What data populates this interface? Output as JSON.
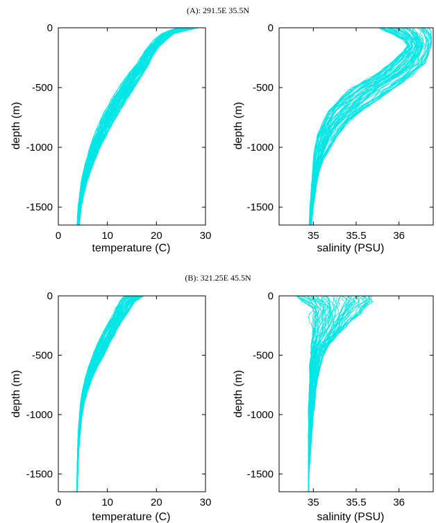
{
  "figure": {
    "line_color": "#00e5e5"
  },
  "chart_data": [
    {
      "type": "line",
      "title": "(A): 291.5E 35.5N",
      "xlabel": "temperature (C)",
      "ylabel": "depth (m)",
      "xlim": [
        0,
        30
      ],
      "ylim": [
        -1650,
        0
      ],
      "xticks": [
        "0",
        "10",
        "20",
        "30"
      ],
      "yticks": [
        "0",
        "-500",
        "-1000",
        "-1500"
      ],
      "profile_count": 60,
      "depth": [
        0,
        -50,
        -100,
        -150,
        -200,
        -300,
        -400,
        -500,
        -600,
        -700,
        -800,
        -900,
        -1000,
        -1100,
        -1200,
        -1300,
        -1400,
        -1500,
        -1650
      ],
      "envelope_min": [
        24.0,
        21.0,
        19.5,
        18.5,
        17.5,
        16.0,
        14.0,
        12.3,
        10.8,
        9.4,
        8.3,
        7.3,
        6.4,
        5.7,
        5.1,
        4.6,
        4.3,
        4.0,
        3.8
      ],
      "envelope_max": [
        28.5,
        23.5,
        22.0,
        20.8,
        19.8,
        18.5,
        17.0,
        15.6,
        14.0,
        12.5,
        11.0,
        9.8,
        8.6,
        7.5,
        6.6,
        5.8,
        5.2,
        4.7,
        4.3
      ]
    },
    {
      "type": "line",
      "title": "",
      "xlabel": "salinity (PSU)",
      "ylabel": "depth (m)",
      "xlim": [
        34.6,
        36.4
      ],
      "ylim": [
        -1650,
        0
      ],
      "xticks": [
        "35",
        "35.5",
        "36"
      ],
      "xtick_values": [
        35,
        35.5,
        36
      ],
      "yticks": [
        "0",
        "-500",
        "-1000",
        "-1500"
      ],
      "profile_count": 60,
      "depth": [
        0,
        -50,
        -100,
        -150,
        -200,
        -300,
        -400,
        -500,
        -600,
        -700,
        -800,
        -900,
        -1000,
        -1100,
        -1200,
        -1300,
        -1400,
        -1500,
        -1650
      ],
      "envelope_min": [
        35.75,
        35.9,
        36.05,
        36.1,
        36.05,
        35.9,
        35.7,
        35.45,
        35.3,
        35.18,
        35.1,
        35.05,
        35.02,
        35.0,
        34.99,
        34.98,
        34.97,
        34.96,
        34.95
      ],
      "envelope_max": [
        36.35,
        36.38,
        36.38,
        36.37,
        36.35,
        36.3,
        36.15,
        35.95,
        35.75,
        35.55,
        35.4,
        35.28,
        35.2,
        35.12,
        35.07,
        35.04,
        35.02,
        35.0,
        34.98
      ]
    },
    {
      "type": "line",
      "title": "(B): 321.25E 45.5N",
      "xlabel": "temperature (C)",
      "ylabel": "depth (m)",
      "xlim": [
        0,
        30
      ],
      "ylim": [
        -1650,
        0
      ],
      "xticks": [
        "0",
        "10",
        "20",
        "30"
      ],
      "yticks": [
        "0",
        "-500",
        "-1000",
        "-1500"
      ],
      "profile_count": 60,
      "depth": [
        0,
        -50,
        -100,
        -150,
        -200,
        -300,
        -400,
        -500,
        -600,
        -700,
        -800,
        -900,
        -1000,
        -1100,
        -1200,
        -1300,
        -1400,
        -1500,
        -1650
      ],
      "envelope_min": [
        13.5,
        12.5,
        11.8,
        11.2,
        10.5,
        9.2,
        8.0,
        7.0,
        6.1,
        5.4,
        4.9,
        4.5,
        4.3,
        4.1,
        4.0,
        3.9,
        3.85,
        3.8,
        3.75
      ],
      "envelope_max": [
        17.5,
        15.5,
        14.8,
        14.0,
        13.2,
        11.8,
        10.5,
        9.3,
        8.0,
        6.9,
        6.0,
        5.3,
        4.9,
        4.6,
        4.4,
        4.2,
        4.1,
        4.0,
        3.9
      ]
    },
    {
      "type": "line",
      "title": "",
      "xlabel": "salinity (PSU)",
      "ylabel": "depth (m)",
      "xlim": [
        34.6,
        36.4
      ],
      "ylim": [
        -1650,
        0
      ],
      "xticks": [
        "35",
        "35.5",
        "36"
      ],
      "xtick_values": [
        35,
        35.5,
        36
      ],
      "yticks": [
        "0",
        "-500",
        "-1000",
        "-1500"
      ],
      "profile_count": 60,
      "depth": [
        0,
        -50,
        -100,
        -150,
        -200,
        -300,
        -400,
        -500,
        -600,
        -700,
        -800,
        -900,
        -1000,
        -1100,
        -1200,
        -1300,
        -1400,
        -1500,
        -1650
      ],
      "envelope_min": [
        34.75,
        34.85,
        34.95,
        34.95,
        34.96,
        34.97,
        34.97,
        34.96,
        34.95,
        34.95,
        34.95,
        34.94,
        34.94,
        34.94,
        34.94,
        34.94,
        34.94,
        34.94,
        34.94
      ],
      "envelope_max": [
        35.7,
        35.7,
        35.6,
        35.55,
        35.45,
        35.32,
        35.2,
        35.12,
        35.08,
        35.05,
        35.03,
        35.02,
        35.0,
        34.99,
        34.98,
        34.97,
        34.96,
        34.95,
        34.95
      ]
    }
  ]
}
